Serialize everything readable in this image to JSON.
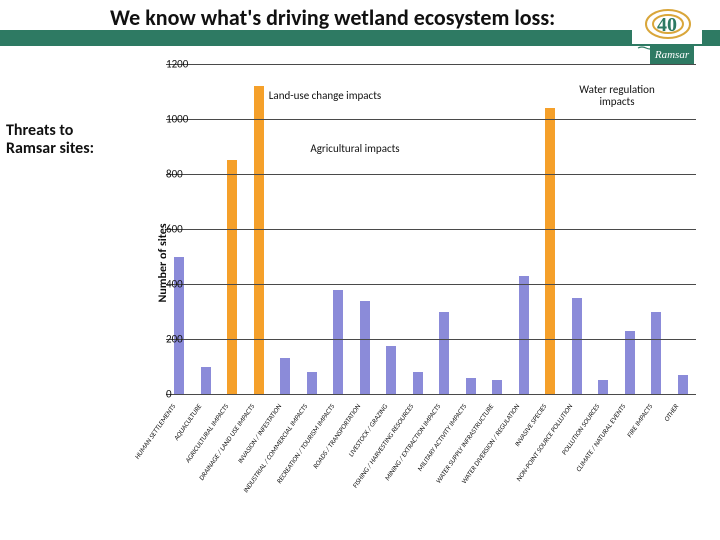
{
  "title": "We know what's driving wetland ecosystem loss:",
  "sidebar_title": "Threats to Ramsar sites:",
  "logo": {
    "top_text": "40",
    "bottom_text": "Ramsar",
    "accent": "#2e7a63",
    "gold": "#d9a63a"
  },
  "title_band_color": "#2e7a63",
  "chart": {
    "type": "bar",
    "y_axis_label": "Number of sites",
    "ylim": [
      0,
      1200
    ],
    "ytick_step": 200,
    "gridline_color": "#4a4a4a",
    "plot_bg": "#ffffff",
    "bar_width": 0.38,
    "categories": [
      "HUMAN SETTLEMENTS",
      "AQUACULTURE",
      "AGRICULTURAL IMPACTS",
      "DRAINAGE / LAND USE IMPACTS",
      "INVASION / INFESTATION",
      "INDUSTRIAL / COMMERCIAL IMPACTS",
      "RECREATION / TOURISM IMPACTS",
      "ROADS / TRANSPORTATION",
      "LIVESTOCK / GRAZING",
      "FISHING / HARVESTING RESOURCES",
      "MINING / EXTRACTION IMPACTS",
      "MILITARY ACTIVITY IMPACTS",
      "WATER SUPPLY INFRASTRUCTURE",
      "WATER DIVERSION / REGULATION",
      "INVASIVE SPECIES",
      "NON-POINT SOURCE POLLUTION",
      "POLLUTION SOURCES",
      "CLIMATE / NATURAL EVENTS",
      "FIRE IMPACTS",
      "OTHER"
    ],
    "values": [
      500,
      100,
      850,
      1120,
      130,
      80,
      380,
      340,
      175,
      80,
      300,
      60,
      50,
      430,
      1040,
      350,
      50,
      230,
      300,
      70
    ],
    "highlight_indices": [
      2,
      3,
      14
    ],
    "bar_color_default": "#8b8bd9",
    "bar_color_highlight": "#f5a02a",
    "axis_font_size": 11,
    "cat_font_size": 7
  },
  "annotations": {
    "land_use": "Land-use change impacts",
    "agricultural": "Agricultural impacts",
    "water_reg": "Water regulation impacts"
  }
}
